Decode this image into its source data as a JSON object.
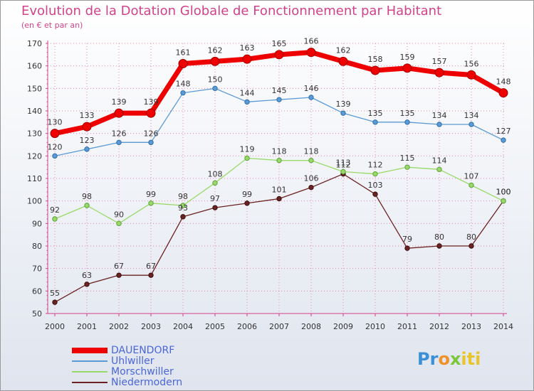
{
  "title": "Evolution de la Dotation Globale de Fonctionnement par Habitant",
  "subtitle": "(en € et par an)",
  "logo": {
    "p1": "Pr",
    "p2": "o",
    "p3": "x",
    "p4": "iti"
  },
  "colors": {
    "title": "#d2428a",
    "axis": "#d2428a",
    "legend_text": "#4a66d8",
    "grid": "#e36aa8",
    "dauendorf": "#ee0000",
    "uhlwiller": "#5b9ad4",
    "morschwiller": "#99d96a",
    "niedermodern": "#6b2222"
  },
  "chart_data": {
    "type": "line",
    "title": "Evolution de la Dotation Globale de Fonctionnement par Habitant",
    "ylabel": "(en € et par an)",
    "xlabel": "",
    "ylim": [
      50,
      170
    ],
    "yticks": [
      50,
      60,
      70,
      80,
      90,
      100,
      110,
      120,
      130,
      140,
      150,
      160,
      170
    ],
    "x": [
      "2000",
      "2001",
      "2002",
      "2003",
      "2004",
      "2005",
      "2006",
      "2007",
      "2008",
      "2009",
      "2010",
      "2011",
      "2012",
      "2013",
      "2014"
    ],
    "grid": true,
    "legend_position": "bottom-left",
    "series": [
      {
        "key": "dauendorf",
        "name": "DAUENDORF",
        "values": [
          130,
          133,
          139,
          139,
          161,
          162,
          163,
          165,
          166,
          162,
          158,
          159,
          157,
          156,
          148
        ]
      },
      {
        "key": "uhlwiller",
        "name": "Uhlwiller",
        "values": [
          120,
          123,
          126,
          126,
          148,
          150,
          144,
          145,
          146,
          139,
          135,
          135,
          134,
          134,
          127
        ]
      },
      {
        "key": "morschwiller",
        "name": "Morschwiller",
        "values": [
          92,
          98,
          90,
          99,
          98,
          108,
          119,
          118,
          118,
          113,
          112,
          115,
          114,
          107,
          100
        ]
      },
      {
        "key": "niedermodern",
        "name": "Niedermodern",
        "values": [
          55,
          63,
          67,
          67,
          93,
          97,
          99,
          101,
          106,
          112,
          103,
          79,
          80,
          80,
          100
        ]
      }
    ]
  }
}
